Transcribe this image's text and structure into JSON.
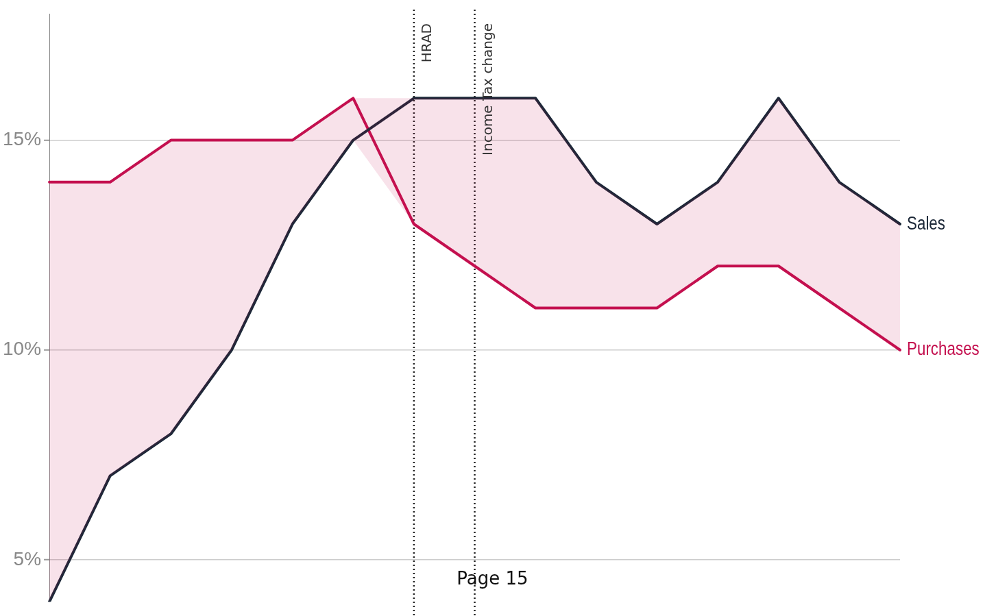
{
  "chart_data": {
    "type": "line",
    "categories": [
      null,
      null,
      null,
      null,
      null,
      null,
      null,
      null,
      null,
      null,
      null,
      null,
      null,
      null,
      null
    ],
    "series": [
      {
        "name": "Sales",
        "color": "#1c2838",
        "values": [
          4,
          7,
          8,
          10,
          13,
          15,
          16,
          16,
          16,
          14,
          13,
          14,
          16,
          14,
          13
        ]
      },
      {
        "name": "Purchases",
        "color": "#c4104f",
        "values": [
          14,
          14,
          15,
          15,
          15,
          16,
          13,
          12,
          11,
          11,
          11,
          12,
          12,
          11,
          10
        ],
        "lower": [
          4,
          7,
          8,
          10,
          13,
          15,
          13,
          12,
          11,
          11,
          11,
          12,
          12,
          11,
          10
        ],
        "upper": [
          14,
          14,
          15,
          15,
          15,
          16,
          16,
          16,
          16,
          14,
          13,
          14,
          16,
          14,
          13
        ]
      }
    ],
    "ylim": [
      4,
      18
    ],
    "yticks": [
      {
        "value": 5,
        "label": "5%"
      },
      {
        "value": 10,
        "label": "10%"
      },
      {
        "value": 15,
        "label": "15%"
      }
    ],
    "tick_labels": "y",
    "grid": "y",
    "legend": false,
    "marker": "none",
    "line_style": "solid",
    "annotations": [
      "HRAD",
      "Income Tax change",
      "Page 15"
    ]
  }
}
